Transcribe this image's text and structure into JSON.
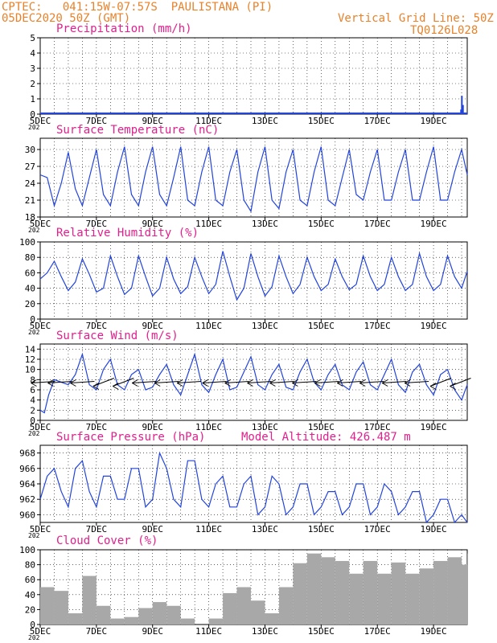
{
  "header": {
    "left_line1": "CPTEC:   041:15W-07:57S  PAULISTANA (PI)",
    "left_line2": "05DEC2020 50Z (GMT)",
    "right_line1": "Vertical Grid Line: 50Z",
    "right_line2": "TQ0126L028"
  },
  "colors": {
    "header": "#e8822a",
    "title": "#e0208c",
    "series": "#2244dd",
    "cloud": "#a8a8a8",
    "wind_arrow": "#000000"
  },
  "x_axis": {
    "ticks": [
      "5DEC",
      "7DEC",
      "9DEC",
      "11DEC",
      "13DEC",
      "15DEC",
      "17DEC",
      "19DEC"
    ],
    "year_fragment": "202"
  },
  "chart_data": [
    {
      "type": "bar",
      "title": "Precipitation (mm/h)",
      "ylim": [
        0,
        5
      ],
      "yticks": [
        0,
        1,
        2,
        3,
        4,
        5
      ],
      "days_range": [
        0,
        15.2
      ],
      "spikes": [
        {
          "day": 14.98,
          "value": 1.2
        },
        {
          "day": 15.02,
          "value": 0.6
        },
        {
          "day": 14.95,
          "value": 0.3
        }
      ]
    },
    {
      "type": "line",
      "title": "Surface Temperature (nC)",
      "ylim": [
        18,
        32
      ],
      "yticks": [
        18,
        21,
        24,
        27,
        30
      ],
      "x_days": [
        0.0,
        0.25,
        0.5,
        0.75,
        1.0,
        1.25,
        1.5,
        1.75,
        2.0,
        2.25,
        2.5,
        2.75,
        3.0,
        3.25,
        3.5,
        3.75,
        4.0,
        4.25,
        4.5,
        4.75,
        5.0,
        5.25,
        5.5,
        5.75,
        6.0,
        6.25,
        6.5,
        6.75,
        7.0,
        7.25,
        7.5,
        7.75,
        8.0,
        8.25,
        8.5,
        8.75,
        9.0,
        9.25,
        9.5,
        9.75,
        10.0,
        10.25,
        10.5,
        10.75,
        11.0,
        11.25,
        11.5,
        11.75,
        12.0,
        12.25,
        12.5,
        12.75,
        13.0,
        13.25,
        13.5,
        13.75,
        14.0,
        14.25,
        14.5,
        14.75,
        15.0,
        15.2
      ],
      "values": [
        25.5,
        25.0,
        20.0,
        24.0,
        29.5,
        23.0,
        20.0,
        25.0,
        30.0,
        22.0,
        20.0,
        26.0,
        30.5,
        22.0,
        20.0,
        26.0,
        30.5,
        22.0,
        20.0,
        25.0,
        30.5,
        21.0,
        20.0,
        26.0,
        30.5,
        21.0,
        20.0,
        26.0,
        30.0,
        21.0,
        19.0,
        26.0,
        30.5,
        21.0,
        19.5,
        26.0,
        30.0,
        21.0,
        20.0,
        26.0,
        30.5,
        21.0,
        20.0,
        25.0,
        30.0,
        22.0,
        21.0,
        26.0,
        30.0,
        21.0,
        21.0,
        26.0,
        30.0,
        21.0,
        21.0,
        26.0,
        30.5,
        21.0,
        21.0,
        26.0,
        30.0,
        25.5
      ]
    },
    {
      "type": "line",
      "title": "Relative Humidity (%)",
      "ylim": [
        0,
        100
      ],
      "yticks": [
        0,
        20,
        40,
        60,
        80,
        100
      ],
      "x_days": [
        0.0,
        0.25,
        0.5,
        0.75,
        1.0,
        1.25,
        1.5,
        1.75,
        2.0,
        2.25,
        2.5,
        2.75,
        3.0,
        3.25,
        3.5,
        3.75,
        4.0,
        4.25,
        4.5,
        4.75,
        5.0,
        5.25,
        5.5,
        5.75,
        6.0,
        6.25,
        6.5,
        6.75,
        7.0,
        7.25,
        7.5,
        7.75,
        8.0,
        8.25,
        8.5,
        8.75,
        9.0,
        9.25,
        9.5,
        9.75,
        10.0,
        10.25,
        10.5,
        10.75,
        11.0,
        11.25,
        11.5,
        11.75,
        12.0,
        12.25,
        12.5,
        12.75,
        13.0,
        13.25,
        13.5,
        13.75,
        14.0,
        14.25,
        14.5,
        14.75,
        15.0,
        15.2
      ],
      "values": [
        52,
        60,
        75,
        55,
        37,
        48,
        78,
        58,
        35,
        40,
        82,
        55,
        32,
        40,
        82,
        55,
        30,
        40,
        80,
        52,
        33,
        42,
        80,
        55,
        33,
        45,
        88,
        55,
        25,
        40,
        85,
        55,
        30,
        42,
        82,
        55,
        33,
        45,
        80,
        55,
        37,
        45,
        78,
        55,
        38,
        45,
        82,
        55,
        37,
        45,
        80,
        55,
        37,
        45,
        85,
        55,
        37,
        45,
        82,
        55,
        40,
        62
      ]
    },
    {
      "type": "line",
      "title": "Surface Wind (m/s)",
      "ylim": [
        0,
        15
      ],
      "yticks": [
        0,
        2,
        4,
        6,
        8,
        10,
        12,
        14
      ],
      "x_days": [
        0.0,
        0.15,
        0.3,
        0.5,
        0.75,
        1.0,
        1.25,
        1.5,
        1.75,
        2.0,
        2.25,
        2.5,
        2.75,
        3.0,
        3.25,
        3.5,
        3.75,
        4.0,
        4.25,
        4.5,
        4.75,
        5.0,
        5.25,
        5.5,
        5.75,
        6.0,
        6.25,
        6.5,
        6.75,
        7.0,
        7.25,
        7.5,
        7.75,
        8.0,
        8.25,
        8.5,
        8.75,
        9.0,
        9.25,
        9.5,
        9.75,
        10.0,
        10.25,
        10.5,
        10.75,
        11.0,
        11.25,
        11.5,
        11.75,
        12.0,
        12.25,
        12.5,
        12.75,
        13.0,
        13.25,
        13.5,
        13.75,
        14.0,
        14.25,
        14.5,
        14.75,
        15.0,
        15.2
      ],
      "values": [
        2.0,
        1.5,
        5.0,
        8.0,
        7.5,
        7.0,
        9.0,
        13.0,
        7.0,
        6.0,
        10.0,
        12.0,
        7.0,
        6.0,
        9.0,
        10.0,
        6.0,
        6.5,
        9.0,
        11.0,
        7.0,
        5.0,
        9.0,
        13.0,
        7.0,
        5.5,
        9.0,
        12.0,
        6.0,
        6.5,
        9.5,
        12.5,
        7.0,
        6.0,
        9.0,
        11.0,
        6.5,
        6.0,
        9.5,
        12.0,
        7.5,
        6.0,
        9.0,
        11.0,
        7.0,
        6.0,
        9.5,
        11.5,
        7.0,
        6.0,
        9.0,
        12.0,
        7.0,
        5.5,
        9.5,
        11.0,
        7.0,
        5.0,
        9.0,
        10.0,
        6.0,
        4.0,
        7.0
      ]
    },
    {
      "type": "line",
      "title": "Surface Pressure (hPa)",
      "annotation": "Model Altitude: 426.487 m",
      "ylim": [
        959,
        969
      ],
      "yticks": [
        960,
        962,
        964,
        966,
        968
      ],
      "x_days": [
        0.0,
        0.25,
        0.5,
        0.75,
        1.0,
        1.25,
        1.5,
        1.75,
        2.0,
        2.25,
        2.5,
        2.75,
        3.0,
        3.25,
        3.5,
        3.75,
        4.0,
        4.25,
        4.5,
        4.75,
        5.0,
        5.25,
        5.5,
        5.75,
        6.0,
        6.25,
        6.5,
        6.75,
        7.0,
        7.25,
        7.5,
        7.75,
        8.0,
        8.25,
        8.5,
        8.75,
        9.0,
        9.25,
        9.5,
        9.75,
        10.0,
        10.25,
        10.5,
        10.75,
        11.0,
        11.25,
        11.5,
        11.75,
        12.0,
        12.25,
        12.5,
        12.75,
        13.0,
        13.25,
        13.5,
        13.75,
        14.0,
        14.25,
        14.5,
        14.75,
        15.0,
        15.2
      ],
      "values": [
        962,
        965,
        966,
        963,
        961,
        966,
        967,
        963,
        961,
        965,
        965,
        962,
        962,
        966,
        966,
        961,
        962,
        968,
        966,
        962,
        961,
        967,
        967,
        962,
        961,
        964,
        965,
        961,
        961,
        964,
        965,
        960,
        961,
        965,
        964,
        960,
        961,
        964,
        964,
        960,
        961,
        963,
        963,
        960,
        961,
        964,
        964,
        960,
        961,
        964,
        963,
        960,
        961,
        963,
        963,
        959,
        960,
        962,
        962,
        959,
        960,
        958
      ]
    },
    {
      "type": "area",
      "title": "Cloud Cover (%)",
      "ylim": [
        0,
        100
      ],
      "yticks": [
        0,
        20,
        40,
        60,
        80,
        100
      ],
      "x_days": [
        0.0,
        0.5,
        1.0,
        1.5,
        2.0,
        2.5,
        3.0,
        3.5,
        4.0,
        4.5,
        5.0,
        5.5,
        6.0,
        6.5,
        7.0,
        7.5,
        8.0,
        8.5,
        9.0,
        9.5,
        10.0,
        10.5,
        11.0,
        11.5,
        12.0,
        12.5,
        13.0,
        13.5,
        14.0,
        14.5,
        15.0,
        15.2
      ],
      "values": [
        50,
        45,
        15,
        65,
        25,
        8,
        10,
        22,
        30,
        25,
        8,
        0,
        8,
        42,
        50,
        32,
        15,
        50,
        82,
        95,
        90,
        85,
        68,
        85,
        68,
        83,
        68,
        75,
        85,
        90,
        80,
        95
      ]
    }
  ],
  "wind_arrows": [
    {
      "day": 0.1,
      "dir": "W"
    },
    {
      "day": 0.7,
      "dir": "W"
    },
    {
      "day": 1.5,
      "dir": "W"
    },
    {
      "day": 2.2,
      "dir": "SW"
    },
    {
      "day": 2.9,
      "dir": "SW"
    },
    {
      "day": 3.7,
      "dir": "W"
    },
    {
      "day": 4.5,
      "dir": "W"
    },
    {
      "day": 5.3,
      "dir": "W"
    },
    {
      "day": 6.2,
      "dir": "W"
    },
    {
      "day": 7.0,
      "dir": "W"
    },
    {
      "day": 7.8,
      "dir": "W"
    },
    {
      "day": 8.6,
      "dir": "W"
    },
    {
      "day": 9.4,
      "dir": "W"
    },
    {
      "day": 10.2,
      "dir": "W"
    },
    {
      "day": 11.0,
      "dir": "W"
    },
    {
      "day": 11.8,
      "dir": "W"
    },
    {
      "day": 12.6,
      "dir": "W"
    },
    {
      "day": 13.4,
      "dir": "W"
    },
    {
      "day": 14.2,
      "dir": "SW"
    },
    {
      "day": 14.9,
      "dir": "SW"
    }
  ]
}
